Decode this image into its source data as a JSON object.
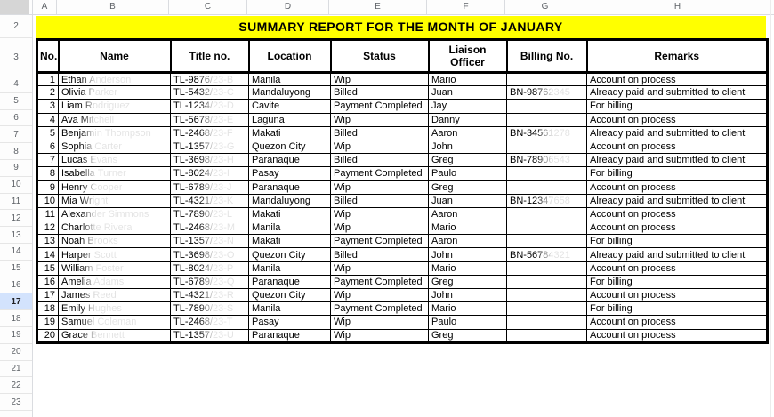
{
  "sheet": {
    "column_letters": [
      "A",
      "B",
      "C",
      "D",
      "E",
      "F",
      "G",
      "H"
    ],
    "row_numbers": [
      "2",
      "3",
      "4",
      "5",
      "6",
      "7",
      "8",
      "9",
      "10",
      "11",
      "12",
      "13",
      "14",
      "15",
      "16",
      "17",
      "18",
      "19",
      "20",
      "21",
      "22",
      "23"
    ],
    "selected_row_number": "17"
  },
  "title": {
    "text": "SUMMARY REPORT FOR THE MONTH OF JANUARY",
    "background_color": "#ffff00"
  },
  "colors": {
    "selected_row_header_bg": "#d3e3fd",
    "faded_text": "#e3e3e3",
    "table_border": "#000000"
  },
  "table": {
    "headers": [
      "No.",
      "Name",
      "Title no.",
      "Location",
      "Status",
      "Liaison Officer",
      "Billing No.",
      "Remarks"
    ],
    "rows": [
      [
        "1",
        "Ethan Anderson",
        "TL-9876/23-B",
        "Manila",
        "Wip",
        "Mario",
        "",
        "Account on process"
      ],
      [
        "2",
        "Olivia Parker",
        "TL-5432/23-C",
        "Mandaluyong",
        "Billed",
        "Juan",
        "BN-98762345",
        "Already paid and submitted to client"
      ],
      [
        "3",
        "Liam Rodriguez",
        "TL-1234/23-D",
        "Cavite",
        "Payment Completed",
        "Jay",
        "",
        "For billing"
      ],
      [
        "4",
        "Ava Mitchell",
        "TL-5678/23-E",
        "Laguna",
        "Wip",
        "Danny",
        "",
        "Account on process"
      ],
      [
        "5",
        "Benjamin Thompson",
        "TL-2468/23-F",
        "Makati",
        "Billed",
        "Aaron",
        "BN-34561278",
        "Already paid and submitted to client"
      ],
      [
        "6",
        "Sophia Carter",
        "TL-1357/23-G",
        "Quezon City",
        "Wip",
        "John",
        "",
        "Account on process"
      ],
      [
        "7",
        "Lucas Evans",
        "TL-3698/23-H",
        "Paranaque",
        "Billed",
        "Greg",
        "BN-78906543",
        "Already paid and submitted to client"
      ],
      [
        "8",
        "Isabella Turner",
        "TL-8024/23-I",
        "Pasay",
        "Payment Completed",
        "Paulo",
        "",
        "For billing"
      ],
      [
        "9",
        "Henry Cooper",
        "TL-6789/23-J",
        "Paranaque",
        "Wip",
        "Greg",
        "",
        "Account on process"
      ],
      [
        "10",
        "Mia Wright",
        "TL-4321/23-K",
        "Mandaluyong",
        "Billed",
        "Juan",
        "BN-12347658",
        "Already paid and submitted to client"
      ],
      [
        "11",
        "Alexander Simmons",
        "TL-7890/23-L",
        "Makati",
        "Wip",
        "Aaron",
        "",
        "Account on process"
      ],
      [
        "12",
        "Charlotte Rivera",
        "TL-2468/23-M",
        "Manila",
        "Wip",
        "Mario",
        "",
        "Account on process"
      ],
      [
        "13",
        "Noah Brooks",
        "TL-1357/23-N",
        "Makati",
        "Payment Completed",
        "Aaron",
        "",
        "For billing"
      ],
      [
        "14",
        "Harper Scott",
        "TL-3698/23-O",
        "Quezon City",
        "Billed",
        "John",
        "BN-56784321",
        "Already paid and submitted to client"
      ],
      [
        "15",
        "William Foster",
        "TL-8024/23-P",
        "Manila",
        "Wip",
        "Mario",
        "",
        "Account on process"
      ],
      [
        "16",
        "Amelia Adams",
        "TL-6789/23-Q",
        "Paranaque",
        "Payment Completed",
        "Greg",
        "",
        "For billing"
      ],
      [
        "17",
        "James Reed",
        "TL-4321/23-R",
        "Quezon City",
        "Wip",
        "John",
        "",
        "Account on process"
      ],
      [
        "18",
        "Emily Hughes",
        "TL-7890/23-S",
        "Manila",
        "Payment Completed",
        "Mario",
        "",
        "For billing"
      ],
      [
        "19",
        "Samuel Coleman",
        "TL-2468/23-T",
        "Pasay",
        "Wip",
        "Paulo",
        "",
        "Account on process"
      ],
      [
        "20",
        "Grace Bennett",
        "TL-1357/23-U",
        "Paranaque",
        "Wip",
        "Greg",
        "",
        "Account on process"
      ]
    ]
  }
}
